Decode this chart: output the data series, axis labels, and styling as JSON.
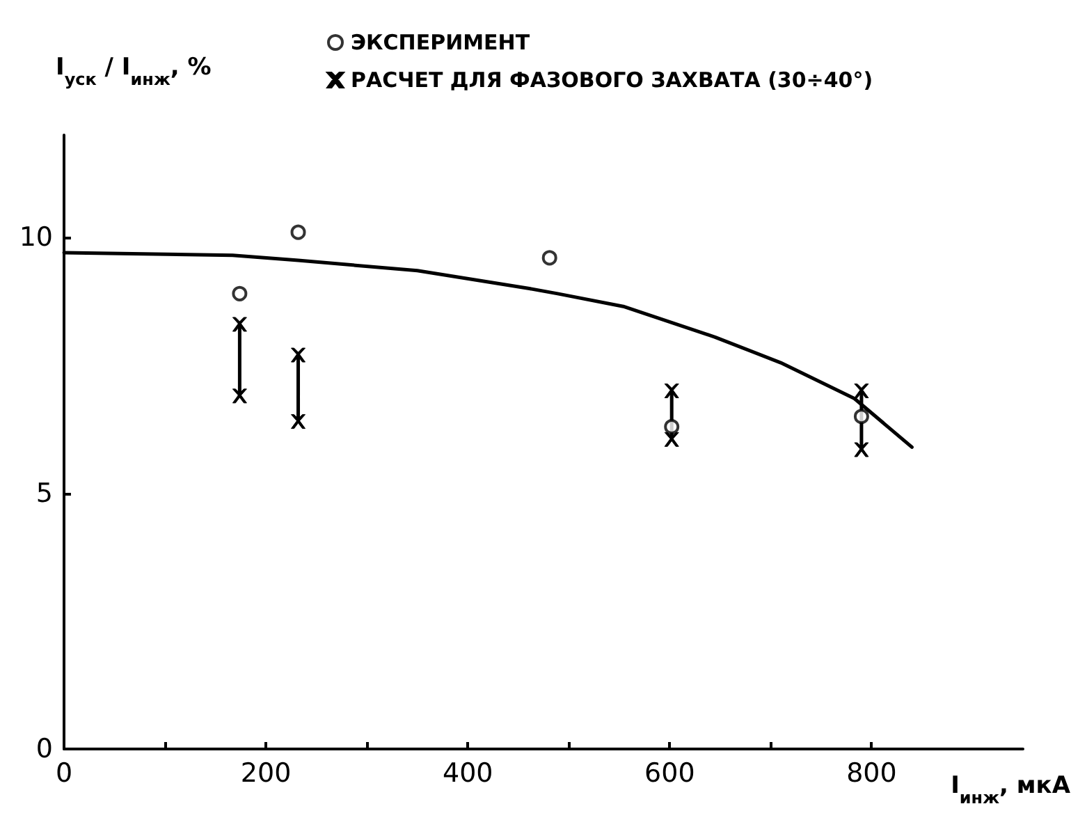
{
  "chart_data": {
    "type": "scatter",
    "xlabel": "I$_{инж}$, мкА",
    "ylabel": "I$_{уск}$ / I$_{инж}$, %",
    "xlim": [
      0,
      950
    ],
    "ylim": [
      0,
      12
    ],
    "xticks": [
      0,
      {
        "value": 100,
        "label": null
      },
      200,
      {
        "value": 300,
        "label": null
      },
      400,
      {
        "value": 500,
        "label": null
      },
      600,
      {
        "value": 700,
        "label": null
      },
      800
    ],
    "yticks": [
      0,
      5,
      10
    ],
    "grid": false,
    "legend": "top",
    "series": [
      {
        "name": "ЭКСПЕРИМЕНТ",
        "marker": "circle",
        "color": "#000000",
        "x": [
          174,
          232,
          481,
          602,
          790
        ],
        "values": [
          8.9,
          10.1,
          9.6,
          6.3,
          6.5
        ]
      },
      {
        "name": "РАСЧЕТ ДЛЯ ФАЗОВОГО ЗАХВАТА (30÷40°)",
        "type": "line",
        "marker": "cross",
        "line_style": "solid",
        "color": "#000000",
        "x": [
          174,
          174,
          200,
          232,
          232,
          500,
          602,
          602,
          700,
          790,
          790
        ],
        "values": [
          8.3,
          6.9,
          null,
          7.7,
          6.4,
          null,
          7.0,
          6.05,
          null,
          7.0,
          5.85
        ]
      },
      {
        "type": "line",
        "marker": "none",
        "line_style": "solid",
        "color": "#000000",
        "x": [
          0,
          167,
          232,
          350,
          461,
          489,
          554,
          645,
          710,
          783,
          840
        ],
        "values": [
          9.7,
          9.65,
          9.55,
          9.35,
          9.0,
          8.9,
          8.65,
          8.05,
          7.55,
          6.85,
          5.9
        ]
      }
    ]
  }
}
